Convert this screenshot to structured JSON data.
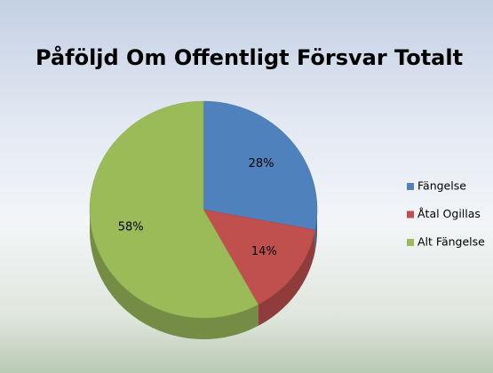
{
  "chart_data": {
    "type": "pie",
    "title": "Påföljd Om Offentligt Försvar Totalt",
    "categories": [
      "Fängelse",
      "Åtal Ogillas",
      "Alt Fängelse"
    ],
    "values": [
      28,
      14,
      58
    ],
    "value_labels": [
      "28%",
      "14%",
      "58%"
    ],
    "colors": [
      "#4f81bd",
      "#c0504d",
      "#9bbb59"
    ],
    "legend": "right"
  }
}
